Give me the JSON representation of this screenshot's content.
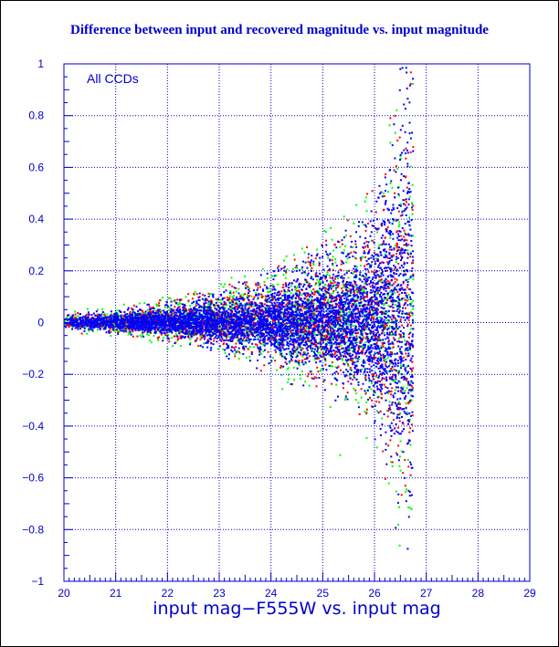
{
  "chart_data": {
    "type": "scatter",
    "title": "Difference between input and recovered magnitude vs. input magnitude",
    "xlabel": "input mag−F555W vs. input mag",
    "ylabel": "",
    "annotation": "All CCDs",
    "xlim": [
      20,
      29
    ],
    "ylim": [
      -1,
      1
    ],
    "x_ticks": [
      "20",
      "21",
      "22",
      "23",
      "24",
      "25",
      "26",
      "27",
      "28",
      "29"
    ],
    "y_ticks": [
      "1",
      "0.8",
      "0.6",
      "0.4",
      "0.2",
      "0",
      "−0.2",
      "−0.4",
      "−0.6",
      "−0.8",
      "−1"
    ],
    "grid": true,
    "colors": {
      "axis": "#0000cc",
      "grid": "#0000cc",
      "title": "#0000cc"
    },
    "series": [
      {
        "color": "#0000ff",
        "envelope": [
          [
            20.0,
            0.02
          ],
          [
            21.0,
            0.03
          ],
          [
            22.0,
            0.05
          ],
          [
            23.0,
            0.08
          ],
          [
            24.0,
            0.12
          ],
          [
            25.0,
            0.18
          ],
          [
            25.5,
            0.22
          ],
          [
            26.0,
            0.3
          ],
          [
            26.3,
            0.45
          ],
          [
            26.6,
            0.7
          ]
        ]
      },
      {
        "color": "#00ff00",
        "envelope": [
          [
            20.0,
            0.025
          ],
          [
            21.0,
            0.04
          ],
          [
            22.0,
            0.07
          ],
          [
            23.0,
            0.1
          ],
          [
            24.0,
            0.15
          ],
          [
            25.0,
            0.22
          ],
          [
            25.5,
            0.27
          ],
          [
            26.0,
            0.35
          ],
          [
            26.3,
            0.5
          ],
          [
            26.6,
            0.75
          ]
        ]
      },
      {
        "color": "#ff0000",
        "envelope": [
          [
            20.0,
            0.02
          ],
          [
            21.0,
            0.03
          ],
          [
            22.0,
            0.06
          ],
          [
            23.0,
            0.09
          ],
          [
            24.0,
            0.13
          ],
          [
            25.0,
            0.2
          ],
          [
            25.5,
            0.25
          ],
          [
            26.0,
            0.33
          ],
          [
            26.3,
            0.48
          ],
          [
            26.6,
            0.72
          ]
        ]
      }
    ]
  }
}
